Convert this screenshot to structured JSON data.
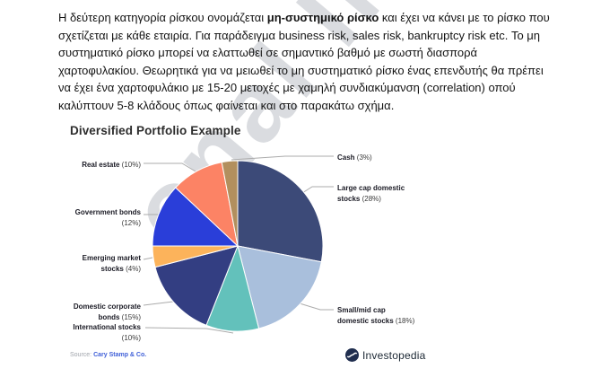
{
  "watermark": {
    "text": "onal In"
  },
  "paragraph": {
    "before_bold": "Η δεύτερη κατηγορία ρίσκου ονομάζεται ",
    "bold": "μη-συστημικό ρίσκο",
    "after_bold": " και έχει να κάνει με το ρίσκο που σχετίζεται με κάθε εταιρία. Για παράδειγμα business risk, sales risk, bankruptcy risk etc. Το μη συστηματικό ρίσκο μπορεί να ελαττωθεί σε σημαντικό βαθμό με σωστή διασπορά χαρτοφυλακίου. Θεωρητικά για να μειωθεί το μη συστηματικό ρίσκο ένας επενδυτής θα πρέπει να έχει ένα χαρτοφυλάκιο με 15-20 μετοχές με χαμηλή συνδιακύμανση (correlation) οπού καλύπτουν 5-8 κλάδους όπως φαίνεται και στο παρακάτω σχήμα."
  },
  "chart_data": {
    "type": "pie",
    "title": "Diversified Portfolio Example",
    "legend_position": "callout-labels",
    "slices": [
      {
        "id": "large_cap",
        "name": "Large cap domestic stocks",
        "pct": 28,
        "color": "#3C4A78",
        "label_lines": [
          {
            "b": "Large cap domestic"
          },
          {
            "b": "stocks ",
            "r": "(28%)"
          }
        ]
      },
      {
        "id": "small_mid",
        "name": "Small/mid cap domestic stocks",
        "pct": 18,
        "color": "#A9BFDC",
        "label_lines": [
          {
            "b": "Small/mid cap"
          },
          {
            "b": "domestic stocks ",
            "r": "(18%)"
          }
        ]
      },
      {
        "id": "international",
        "name": "International stocks",
        "pct": 10,
        "color": "#63C1BB",
        "label_lines": [
          {
            "b": "International stocks"
          },
          {
            "r": "(10%)"
          }
        ]
      },
      {
        "id": "domestic_corporate",
        "name": "Domestic corporate bonds",
        "pct": 15,
        "color": "#333E82",
        "label_lines": [
          {
            "b": "Domestic corporate"
          },
          {
            "b": "bonds ",
            "r": "(15%)"
          }
        ]
      },
      {
        "id": "emerging",
        "name": "Emerging market stocks",
        "pct": 4,
        "color": "#FCB35B",
        "label_lines": [
          {
            "b": "Emerging market"
          },
          {
            "b": "stocks ",
            "r": "(4%)"
          }
        ]
      },
      {
        "id": "government",
        "name": "Government bonds",
        "pct": 12,
        "color": "#2A3ED9",
        "label_lines": [
          {
            "b": "Government bonds"
          },
          {
            "r": "(12%)"
          }
        ]
      },
      {
        "id": "real_estate",
        "name": "Real estate",
        "pct": 10,
        "color": "#FC8365",
        "label_lines": [
          {
            "b": "Real estate ",
            "r": "(10%)"
          }
        ]
      },
      {
        "id": "cash",
        "name": "Cash",
        "pct": 3,
        "color": "#B28F5E",
        "label_lines": [
          {
            "b": "Cash ",
            "r": "(3%)"
          }
        ]
      }
    ]
  },
  "source": {
    "label": "Source:",
    "link": "Cary Stamp & Co."
  },
  "footer": {
    "logo_text": "Investopedia",
    "logo_color": "#1f2d4e"
  }
}
